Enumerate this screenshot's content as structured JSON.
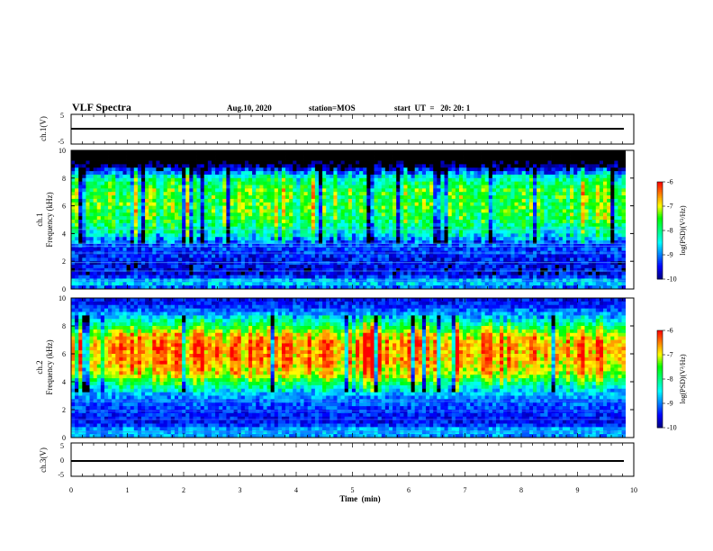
{
  "header": {
    "title": "VLF Spectra",
    "date": "Aug.10, 2020",
    "station": "station=MOS",
    "start": "start  UT  =   20: 20: 1"
  },
  "colors": {
    "scale": [
      "#000080",
      "#0000ff",
      "#0080ff",
      "#00ffff",
      "#00ff80",
      "#00ff00",
      "#ffff00",
      "#ff8000",
      "#ff0000",
      "#ffffff"
    ],
    "axis": "#000000"
  },
  "chart_data": [
    {
      "type": "line",
      "name": "ch1-waveform",
      "ylabel": "ch.1(V)",
      "ylim": [
        -5,
        5
      ],
      "yticks": [
        "5",
        "-5"
      ],
      "x": [
        0,
        10
      ],
      "values": [
        0,
        0
      ]
    },
    {
      "type": "heatmap",
      "name": "ch1-spectrogram",
      "ylabel": "ch.1\nFrequency (kHz)",
      "ylabel_lines": [
        "ch.1",
        "Frequency (kHz)"
      ],
      "ylim": [
        0,
        10
      ],
      "yticks": [
        "0",
        "2",
        "4",
        "6",
        "8",
        "10"
      ],
      "xlim": [
        0,
        10
      ],
      "data_end_min": 9.85,
      "intensity_profile": [
        {
          "f": 0.0,
          "v": -9.3
        },
        {
          "f": 0.5,
          "v": -8.5
        },
        {
          "f": 1.0,
          "v": -9.6
        },
        {
          "f": 2.0,
          "v": -9.5
        },
        {
          "f": 3.0,
          "v": -9.3
        },
        {
          "f": 3.5,
          "v": -9.0
        },
        {
          "f": 4.0,
          "v": -8.3
        },
        {
          "f": 5.0,
          "v": -7.8
        },
        {
          "f": 6.0,
          "v": -7.6
        },
        {
          "f": 7.0,
          "v": -7.6
        },
        {
          "f": 8.0,
          "v": -8.2
        },
        {
          "f": 8.6,
          "v": -9.5
        },
        {
          "f": 9.3,
          "v": -10.5
        },
        {
          "f": 10.0,
          "v": -10.5
        }
      ],
      "colorbar": {
        "ticks": [
          "-6",
          "-7",
          "-8",
          "-9",
          "-10"
        ],
        "label": "log(PSD)(V²/Hz)",
        "range": [
          -10,
          -6
        ]
      }
    },
    {
      "type": "heatmap",
      "name": "ch2-spectrogram",
      "ylabel": "ch.2\nFrequency (kHz)",
      "ylabel_lines": [
        "ch.2",
        "Frequency (kHz)"
      ],
      "ylim": [
        0,
        10
      ],
      "yticks": [
        "0",
        "2",
        "4",
        "6",
        "8",
        "10"
      ],
      "xlim": [
        0,
        10
      ],
      "data_end_min": 9.85,
      "intensity_profile": [
        {
          "f": 0.0,
          "v": -9.0
        },
        {
          "f": 0.5,
          "v": -8.7
        },
        {
          "f": 1.0,
          "v": -9.5
        },
        {
          "f": 2.0,
          "v": -9.3
        },
        {
          "f": 3.0,
          "v": -8.9
        },
        {
          "f": 3.8,
          "v": -8.0
        },
        {
          "f": 4.5,
          "v": -7.0
        },
        {
          "f": 5.5,
          "v": -6.6
        },
        {
          "f": 6.5,
          "v": -6.5
        },
        {
          "f": 7.3,
          "v": -6.8
        },
        {
          "f": 8.0,
          "v": -7.8
        },
        {
          "f": 8.8,
          "v": -8.8
        },
        {
          "f": 9.5,
          "v": -9.4
        },
        {
          "f": 10.0,
          "v": -9.6
        }
      ],
      "colorbar": {
        "ticks": [
          "-6",
          "-7",
          "-8",
          "-9",
          "-10"
        ],
        "label": "log(PSD)(V²/Hz)",
        "range": [
          -10,
          -6
        ]
      }
    },
    {
      "type": "line",
      "name": "ch3-waveform",
      "ylabel": "ch.3(V)",
      "ylim": [
        -5,
        5
      ],
      "yticks": [
        "5",
        "0",
        "-5"
      ],
      "x": [
        0,
        10
      ],
      "values": [
        0,
        0
      ]
    }
  ],
  "xaxis": {
    "label": "Time  (min)",
    "range": [
      0,
      10
    ],
    "ticks": [
      "0",
      "1",
      "2",
      "3",
      "4",
      "5",
      "6",
      "7",
      "8",
      "9",
      "10"
    ]
  }
}
